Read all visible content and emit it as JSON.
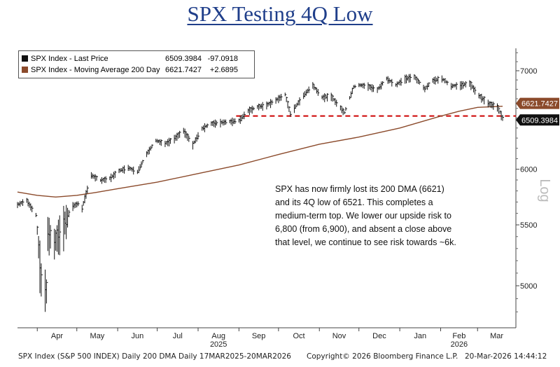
{
  "page_title": "SPX Testing 4Q Low",
  "legend": [
    {
      "name": "SPX Index - Last Price",
      "value": "6509.3984",
      "change": "-97.0918",
      "color": "#111111"
    },
    {
      "name": "SPX Index - Moving Average 200 Day",
      "value": "6621.7427",
      "change": "+2.6895",
      "color": "#8b4a2b"
    }
  ],
  "annotation": "SPX has now firmly lost its 200 DMA (6621) and its 4Q low of 6521. This completes a medium-term top. We lower our upside risk to 6,800 (from 6,900), and absent a close above that level, we continue to see risk towards ~6k.",
  "footer": {
    "left": "SPX Index (S&P 500 INDEX) Daily 200 DMA Daily 17MAR2025-20MAR2026",
    "center": "Copyright© 2026 Bloomberg Finance L.P.",
    "right": "20-Mar-2026 14:44:12"
  },
  "chart_data": {
    "type": "line",
    "title": "SPX Testing 4Q Low",
    "ylabel": "Log",
    "y_scale": "log",
    "ylim": [
      4750,
      7250
    ],
    "y_ticks": [
      5000,
      5500,
      6000,
      6500,
      7000
    ],
    "x_months": [
      "Apr",
      "May",
      "Jun",
      "Jul",
      "Aug",
      "Sep",
      "Oct",
      "Nov",
      "Dec",
      "Jan",
      "Feb",
      "Mar"
    ],
    "x_years": [
      {
        "label": "2025",
        "under": "Aug"
      },
      {
        "label": "2026",
        "under": "Feb"
      }
    ],
    "support_line": {
      "value": 6521,
      "color": "#cc0000",
      "style": "dashed",
      "from_month": "Sep"
    },
    "last_labels": [
      {
        "text": "6621.7427",
        "value": 6621.7427,
        "color": "#8b4a2b"
      },
      {
        "text": "6509.3984",
        "value": 6509.3984,
        "color": "#111111"
      }
    ],
    "series": [
      {
        "name": "SPX Index - Last Price",
        "color": "#111111",
        "style": "ohlc",
        "x": [
          "2025-03-17",
          "2025-03-24",
          "2025-03-31",
          "2025-04-04",
          "2025-04-08",
          "2025-04-09",
          "2025-04-14",
          "2025-04-21",
          "2025-04-28",
          "2025-05-02",
          "2025-05-05",
          "2025-05-12",
          "2025-05-19",
          "2025-05-26",
          "2025-06-02",
          "2025-06-09",
          "2025-06-16",
          "2025-06-23",
          "2025-06-30",
          "2025-07-07",
          "2025-07-14",
          "2025-07-21",
          "2025-07-28",
          "2025-08-04",
          "2025-08-11",
          "2025-08-18",
          "2025-08-25",
          "2025-09-01",
          "2025-09-08",
          "2025-09-15",
          "2025-09-22",
          "2025-09-29",
          "2025-10-06",
          "2025-10-10",
          "2025-10-20",
          "2025-10-27",
          "2025-11-03",
          "2025-11-10",
          "2025-11-20",
          "2025-11-27",
          "2025-12-01",
          "2025-12-08",
          "2025-12-15",
          "2025-12-22",
          "2025-12-29",
          "2026-01-05",
          "2026-01-12",
          "2026-01-20",
          "2026-01-26",
          "2026-02-02",
          "2026-02-09",
          "2026-02-16",
          "2026-02-23",
          "2026-03-02",
          "2026-03-09",
          "2026-03-16",
          "2026-03-20"
        ],
        "values": [
          5680,
          5720,
          5590,
          5080,
          4980,
          5460,
          5370,
          5520,
          5670,
          5690,
          5650,
          5950,
          5900,
          5920,
          5990,
          6020,
          5980,
          6150,
          6280,
          6250,
          6300,
          6380,
          6240,
          6400,
          6450,
          6460,
          6470,
          6480,
          6580,
          6620,
          6640,
          6690,
          6750,
          6550,
          6740,
          6850,
          6720,
          6730,
          6560,
          6830,
          6850,
          6840,
          6800,
          6920,
          6850,
          6920,
          6940,
          6810,
          6900,
          6920,
          6840,
          6850,
          6870,
          6740,
          6660,
          6620,
          6509.3984
        ]
      },
      {
        "name": "SPX Index - Moving Average 200 Day",
        "color": "#8b4a2b",
        "style": "line",
        "x": [
          "2025-03-17",
          "2025-04-01",
          "2025-04-15",
          "2025-05-01",
          "2025-05-15",
          "2025-06-01",
          "2025-07-01",
          "2025-08-01",
          "2025-09-01",
          "2025-10-01",
          "2025-11-01",
          "2025-12-01",
          "2026-01-01",
          "2026-02-01",
          "2026-02-15",
          "2026-03-01",
          "2026-03-20"
        ],
        "values": [
          5790,
          5760,
          5745,
          5760,
          5785,
          5820,
          5880,
          5960,
          6040,
          6140,
          6240,
          6310,
          6400,
          6520,
          6570,
          6610,
          6621.7427
        ]
      }
    ]
  }
}
